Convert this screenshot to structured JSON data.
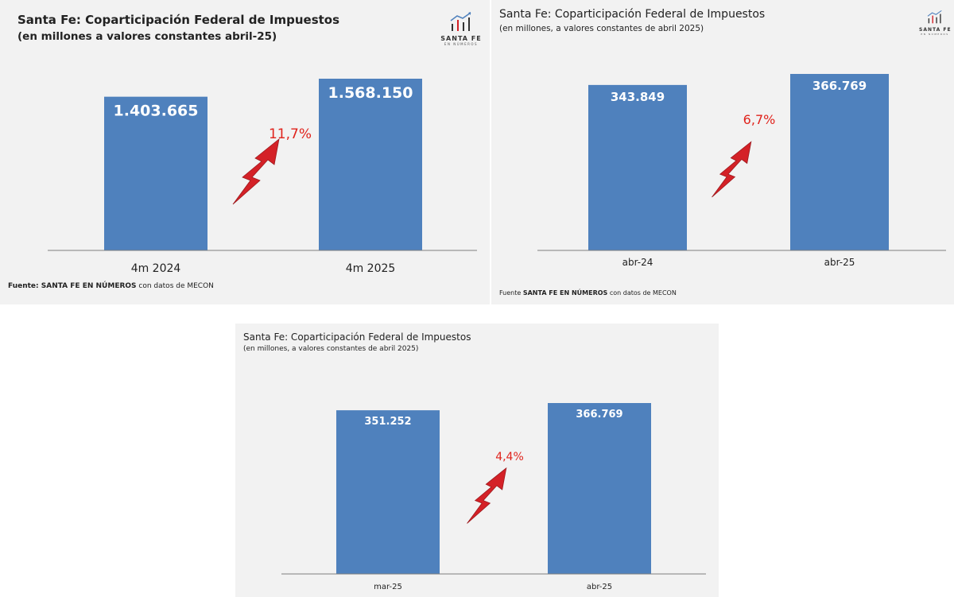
{
  "logo": {
    "main": "SANTA FE",
    "sub": "EN NÚMEROS"
  },
  "colors": {
    "bar": "#4f81bd",
    "arrow": "#d42127",
    "pct": "#e0231c",
    "axis": "#7f7f7f",
    "bg": "#f2f2f2"
  },
  "chart_data": [
    {
      "type": "bar",
      "title": "Santa Fe: Coparticipación Federal de Impuestos",
      "subtitle": "(en millones a valores constantes abril-25)",
      "categories": [
        "4m 2024",
        "4m 2025"
      ],
      "values": [
        1403665,
        1568150
      ],
      "value_labels": [
        "1.403.665",
        "1.568.150"
      ],
      "change_label": "11,7%",
      "source_bold": "SANTA FE EN NÚMEROS",
      "source_prefix": "Fuente: ",
      "source_rest": " con datos de MECON"
    },
    {
      "type": "bar",
      "title": "Santa Fe: Coparticipación Federal de Impuestos",
      "subtitle": "(en millones, a valores constantes de abril 2025)",
      "categories": [
        "abr-24",
        "abr-25"
      ],
      "values": [
        343849,
        366769
      ],
      "value_labels": [
        "343.849",
        "366.769"
      ],
      "change_label": "6,7%",
      "source_prefix": "Fuente ",
      "source_bold": "SANTA FE EN NÚMEROS",
      "source_rest": " con datos de MECON"
    },
    {
      "type": "bar",
      "title": "Santa Fe: Coparticipación Federal de Impuestos",
      "subtitle": "(en millones, a valores constantes de abril 2025)",
      "categories": [
        "mar-25",
        "abr-25"
      ],
      "values": [
        351252,
        366769
      ],
      "value_labels": [
        "351.252",
        "366.769"
      ],
      "change_label": "4,4%"
    }
  ]
}
